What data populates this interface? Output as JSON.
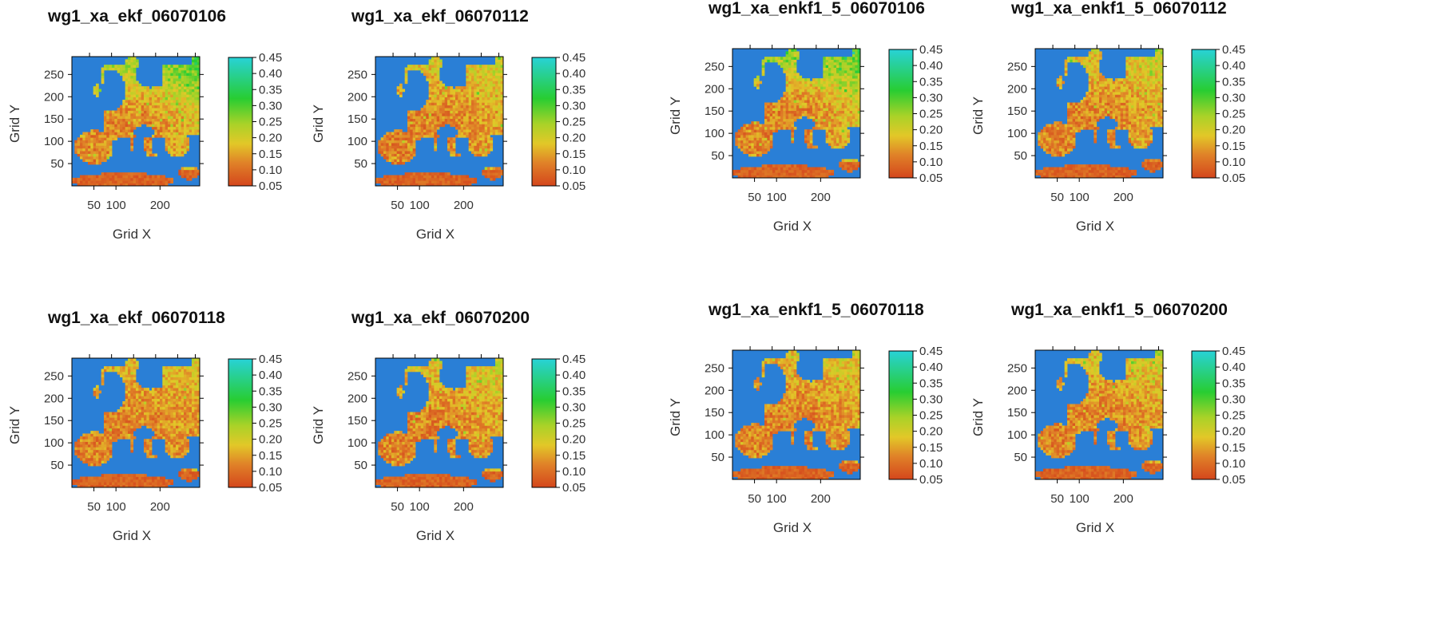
{
  "palette": {
    "sea": "#2a7fd6",
    "land_low": "#d4501c",
    "land_mid": "#e08c2a",
    "land_high": "#9cc728",
    "wet": "#1fcf3f",
    "frame": "#000000"
  },
  "axes_common": {
    "xlabel": "Grid X",
    "ylabel": "Grid Y",
    "xticks": [
      50,
      100,
      200
    ],
    "yticks": [
      50,
      100,
      150,
      200,
      250
    ],
    "colorbar_ticks": [
      "0.45",
      "0.40",
      "0.35",
      "0.30",
      "0.25",
      "0.20",
      "0.15",
      "0.10",
      "0.05"
    ]
  },
  "chart_data": [
    {
      "type": "heatmap",
      "title": "wg1_xa_ekf_06070106",
      "xlabel": "Grid X",
      "ylabel": "Grid Y",
      "xlim": [
        0,
        290
      ],
      "ylim": [
        0,
        290
      ],
      "zlim": [
        0.05,
        0.45
      ],
      "wetness": 0.55,
      "seed": 11
    },
    {
      "type": "heatmap",
      "title": "wg1_xa_ekf_06070112",
      "xlabel": "Grid X",
      "ylabel": "Grid Y",
      "xlim": [
        0,
        290
      ],
      "ylim": [
        0,
        290
      ],
      "zlim": [
        0.05,
        0.45
      ],
      "wetness": 0.3,
      "seed": 23
    },
    {
      "type": "heatmap",
      "title": "wg1_xa_enkf1_5_06070106",
      "xlabel": "Grid X",
      "ylabel": "Grid Y",
      "xlim": [
        0,
        290
      ],
      "ylim": [
        0,
        290
      ],
      "zlim": [
        0.05,
        0.45
      ],
      "wetness": 0.55,
      "seed": 37
    },
    {
      "type": "heatmap",
      "title": "wg1_xa_enkf1_5_06070112",
      "xlabel": "Grid X",
      "ylabel": "Grid Y",
      "xlim": [
        0,
        290
      ],
      "ylim": [
        0,
        290
      ],
      "zlim": [
        0.05,
        0.45
      ],
      "wetness": 0.3,
      "seed": 41
    },
    {
      "type": "heatmap",
      "title": "wg1_xa_ekf_06070118",
      "xlabel": "Grid X",
      "ylabel": "Grid Y",
      "xlim": [
        0,
        290
      ],
      "ylim": [
        0,
        290
      ],
      "zlim": [
        0.05,
        0.45
      ],
      "wetness": 0.2,
      "seed": 53
    },
    {
      "type": "heatmap",
      "title": "wg1_xa_ekf_06070200",
      "xlabel": "Grid X",
      "ylabel": "Grid Y",
      "xlim": [
        0,
        290
      ],
      "ylim": [
        0,
        290
      ],
      "zlim": [
        0.05,
        0.45
      ],
      "wetness": 0.28,
      "seed": 67
    },
    {
      "type": "heatmap",
      "title": "wg1_xa_enkf1_5_06070118",
      "xlabel": "Grid X",
      "ylabel": "Grid Y",
      "xlim": [
        0,
        290
      ],
      "ylim": [
        0,
        290
      ],
      "zlim": [
        0.05,
        0.45
      ],
      "wetness": 0.22,
      "seed": 71
    },
    {
      "type": "heatmap",
      "title": "wg1_xa_enkf1_5_06070200",
      "xlabel": "Grid X",
      "ylabel": "Grid Y",
      "xlim": [
        0,
        290
      ],
      "ylim": [
        0,
        290
      ],
      "zlim": [
        0.05,
        0.45
      ],
      "wetness": 0.26,
      "seed": 83
    }
  ]
}
